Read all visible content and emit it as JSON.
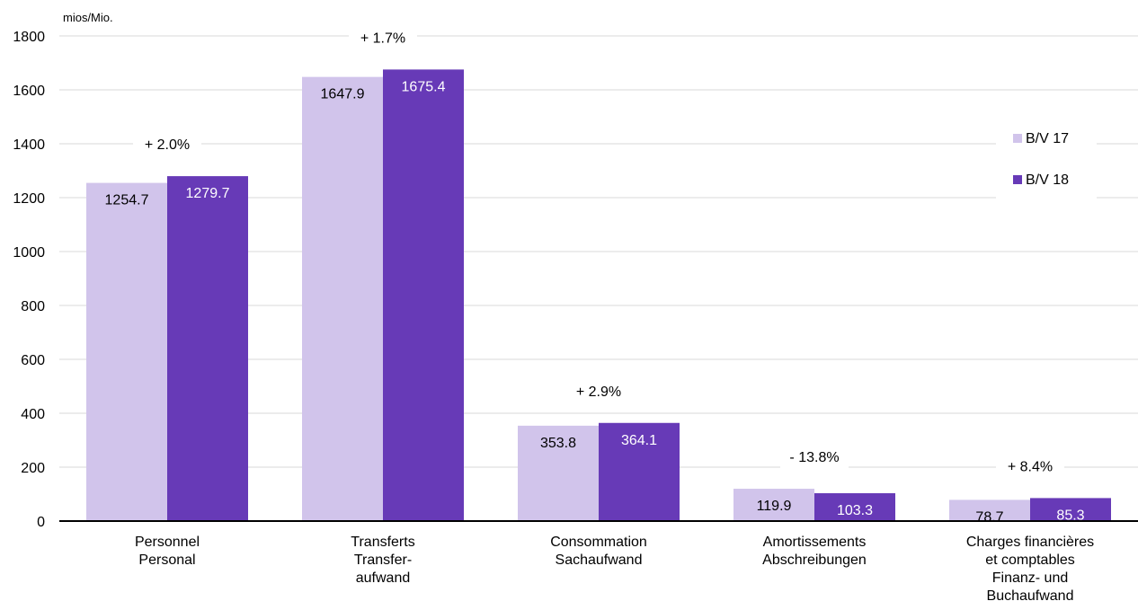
{
  "chart_data": {
    "type": "bar",
    "unit_label": "mios/Mio.",
    "ylim": [
      0,
      1800
    ],
    "yticks": [
      0,
      200,
      400,
      600,
      800,
      1000,
      1200,
      1400,
      1600,
      1800
    ],
    "grid": true,
    "legend_position": "right",
    "categories": [
      [
        "Personnel",
        "Personal"
      ],
      [
        "Transferts",
        "Transfer-",
        "aufwand"
      ],
      [
        "Consommation",
        "Sachaufwand"
      ],
      [
        "Amortissements",
        "Abschreibungen"
      ],
      [
        "Charges financières",
        "et comptables",
        "Finanz- und",
        "Buchaufwand"
      ]
    ],
    "series": [
      {
        "name": "B/V 17",
        "color": "#d1c4eb",
        "values": [
          1254.7,
          1647.9,
          353.8,
          119.9,
          78.7
        ],
        "labels": [
          "1254.7",
          "1647.9",
          "353.8",
          "119.9",
          "78.7"
        ]
      },
      {
        "name": "B/V 18",
        "color": "#673ab7",
        "values": [
          1279.7,
          1675.4,
          364.1,
          103.3,
          85.3
        ],
        "labels": [
          "1279.7",
          "1675.4",
          "364.1",
          "103.3",
          "85.3"
        ]
      }
    ],
    "annotations": [
      "+ 2.0%",
      "+ 1.7%",
      "+ 2.9%",
      "- 13.8%",
      "+ 8.4%"
    ]
  }
}
